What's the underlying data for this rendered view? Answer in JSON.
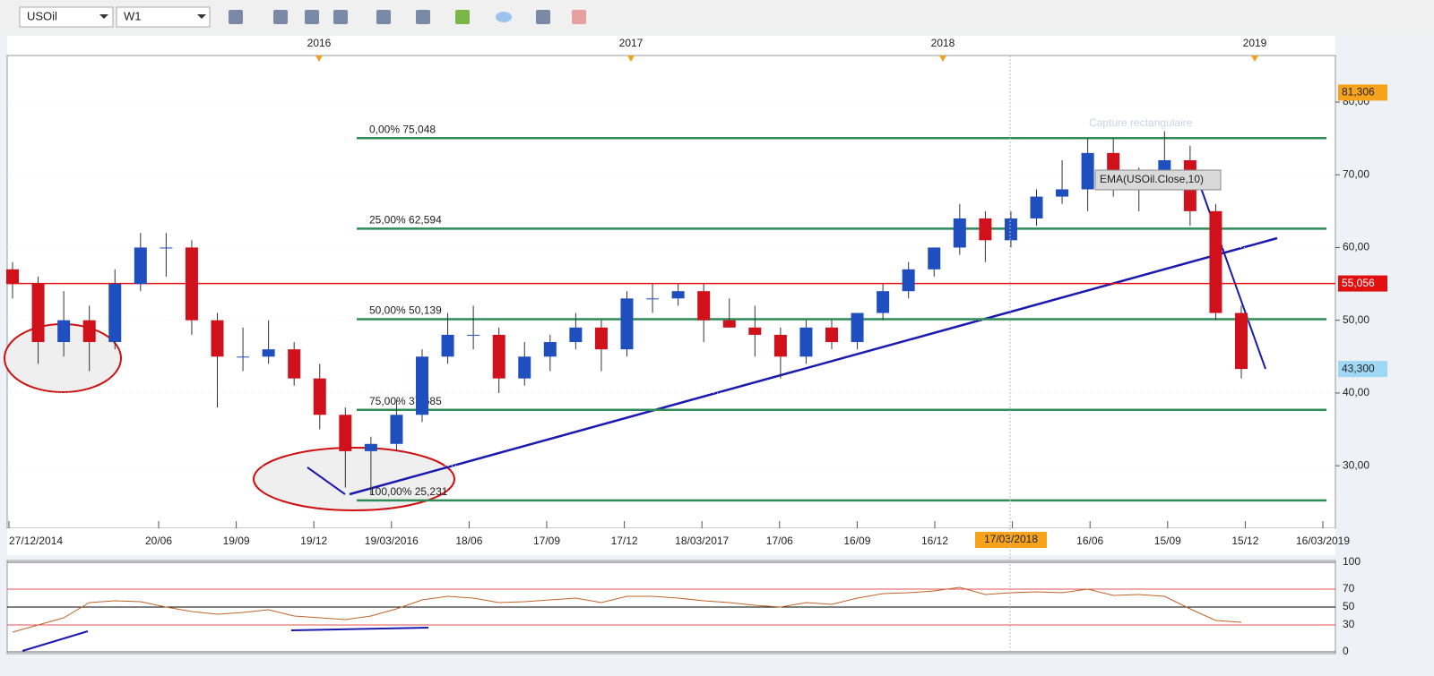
{
  "toolbar": {
    "symbol": "USOil",
    "timeframe": "W1"
  },
  "chart_data": [
    {
      "type": "candlestick",
      "open": [
        57,
        55,
        47,
        50,
        47,
        55,
        60,
        60,
        50,
        45,
        45,
        46,
        42,
        37,
        32,
        33,
        37,
        45,
        48,
        48,
        42,
        45,
        47,
        49,
        46,
        53,
        53,
        54,
        50,
        49,
        48,
        45,
        49,
        47,
        51,
        54,
        57,
        60,
        64,
        61,
        64,
        67,
        68,
        73,
        69,
        70,
        72,
        65,
        51
      ],
      "high": [
        58,
        56,
        54,
        52,
        57,
        62,
        62,
        61,
        51,
        49,
        50,
        47,
        44,
        38,
        34,
        39,
        46,
        51,
        52,
        49,
        47,
        48,
        51,
        50,
        54,
        55,
        55,
        55,
        53,
        52,
        49,
        50,
        50,
        51,
        55,
        58,
        60,
        66,
        65,
        65,
        68,
        72,
        75,
        75,
        71,
        76,
        74,
        66,
        52
      ],
      "low": [
        53,
        44,
        45,
        43,
        46,
        54,
        56,
        48,
        38,
        43,
        44,
        41,
        35,
        27,
        26,
        32,
        36,
        44,
        46,
        40,
        41,
        43,
        46,
        43,
        45,
        51,
        52,
        47,
        49,
        45,
        42,
        44,
        46,
        46,
        50,
        53,
        56,
        59,
        58,
        60,
        63,
        66,
        65,
        67,
        65,
        69,
        63,
        50,
        42
      ],
      "close": [
        55,
        47,
        50,
        47,
        55,
        60,
        60,
        50,
        45,
        45,
        46,
        42,
        37,
        32,
        33,
        37,
        45,
        48,
        48,
        42,
        45,
        47,
        49,
        46,
        53,
        53,
        54,
        50,
        49,
        48,
        45,
        49,
        47,
        51,
        54,
        57,
        60,
        64,
        61,
        64,
        67,
        68,
        73,
        69,
        70,
        72,
        65,
        51,
        43.3
      ],
      "up_color": "#1f4fbf",
      "down_color": "#d0101b",
      "ylim": [
        21.4,
        86.4
      ],
      "yticks": [
        {
          "value": 30,
          "label": "30,00"
        },
        {
          "value": 40,
          "label": "40,00"
        },
        {
          "value": 50,
          "label": "50,00"
        },
        {
          "value": 60,
          "label": "60,00"
        },
        {
          "value": 70,
          "label": "70,00"
        },
        {
          "value": 80,
          "label": "80,00"
        }
      ],
      "levels": [
        {
          "value": 75.048,
          "label": "0,00% 75,048"
        },
        {
          "value": 62.594,
          "label": "25,00% 62,594"
        },
        {
          "value": 50.139,
          "label": "50,00% 50,139"
        },
        {
          "value": 37.685,
          "label": "75,00% 37,685"
        },
        {
          "value": 25.231,
          "label": "100,00% 25,231"
        }
      ],
      "level_color": "#2e8b57",
      "price_lines": [
        {
          "value": 55.056,
          "label": "55,056",
          "color": "#e01010"
        }
      ],
      "price_labels": [
        {
          "value": 81.306,
          "label": "81,306",
          "color": "#f7a21b"
        },
        {
          "value": 43.3,
          "label": "43,300",
          "color": "#9fd8f5"
        }
      ],
      "x_labels": [
        "27/12/2014",
        "20/06",
        "19/09",
        "19/12",
        "19/03/2016",
        "18/06",
        "17/09",
        "17/12",
        "18/03/2017",
        "17/06",
        "16/09",
        "16/12",
        "17/03/2018",
        "16/06",
        "15/09",
        "15/12",
        "16/03/2019"
      ],
      "year_labels": [
        "2016",
        "2017",
        "2018",
        "2019"
      ],
      "crosshair_label": "17/03/2018",
      "tooltip": "EMA(USOil.Close,10)",
      "watermark": "Capture rectangulaire"
    },
    {
      "type": "line",
      "values": [
        22,
        30,
        38,
        55,
        57,
        56,
        50,
        45,
        42,
        44,
        47,
        40,
        38,
        36,
        40,
        48,
        58,
        62,
        60,
        55,
        56,
        58,
        60,
        55,
        62,
        62,
        60,
        57,
        55,
        52,
        50,
        55,
        53,
        60,
        65,
        66,
        68,
        72,
        64,
        66,
        67,
        66,
        70,
        63,
        64,
        62,
        48,
        35,
        33
      ],
      "color": "#c0642a",
      "ylim": [
        0,
        100
      ],
      "yticks": [
        0,
        30,
        50,
        70,
        100
      ]
    }
  ]
}
